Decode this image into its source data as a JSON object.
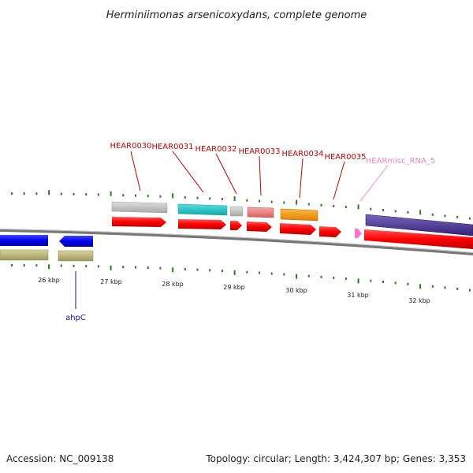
{
  "title": "Herminiimonas arsenicoxydans, complete genome",
  "footer": {
    "accession": "Accession: NC_009138",
    "summary": "Topology: circular; Length: 3,424,307 bp; Genes: 3,353"
  },
  "scale_labels": [
    "26 kbp",
    "27 kbp",
    "28 kbp",
    "29 kbp",
    "30 kbp",
    "31 kbp",
    "32 kbp"
  ],
  "gene_labels": [
    {
      "text": "HEAR0030",
      "color": "#cc0000"
    },
    {
      "text": "HEAR0031",
      "color": "#cc0000"
    },
    {
      "text": "HEAR0032",
      "color": "#cc0000"
    },
    {
      "text": "HEAR0033",
      "color": "#cc0000"
    },
    {
      "text": "HEAR0034",
      "color": "#cc0000"
    },
    {
      "text": "HEAR0035",
      "color": "#cc0000"
    },
    {
      "text": "HEARmisc_RNA_5",
      "color": "#ee88bb"
    },
    {
      "text": "ahpC",
      "color": "#1111aa"
    }
  ],
  "colors": {
    "backbone": "#808080",
    "tick": "#2d7a1f",
    "cds": "#ff0000",
    "cog_gray": "#c0c0c0",
    "cog_cyan": "#22c8c8",
    "cog_salmon": "#ee8080",
    "cog_orange": "#ff9900",
    "cog_purple": "#554499",
    "cog_olive": "#bcb77a",
    "cds_blue": "#0000ee",
    "rna_pink": "#ff77cc"
  }
}
